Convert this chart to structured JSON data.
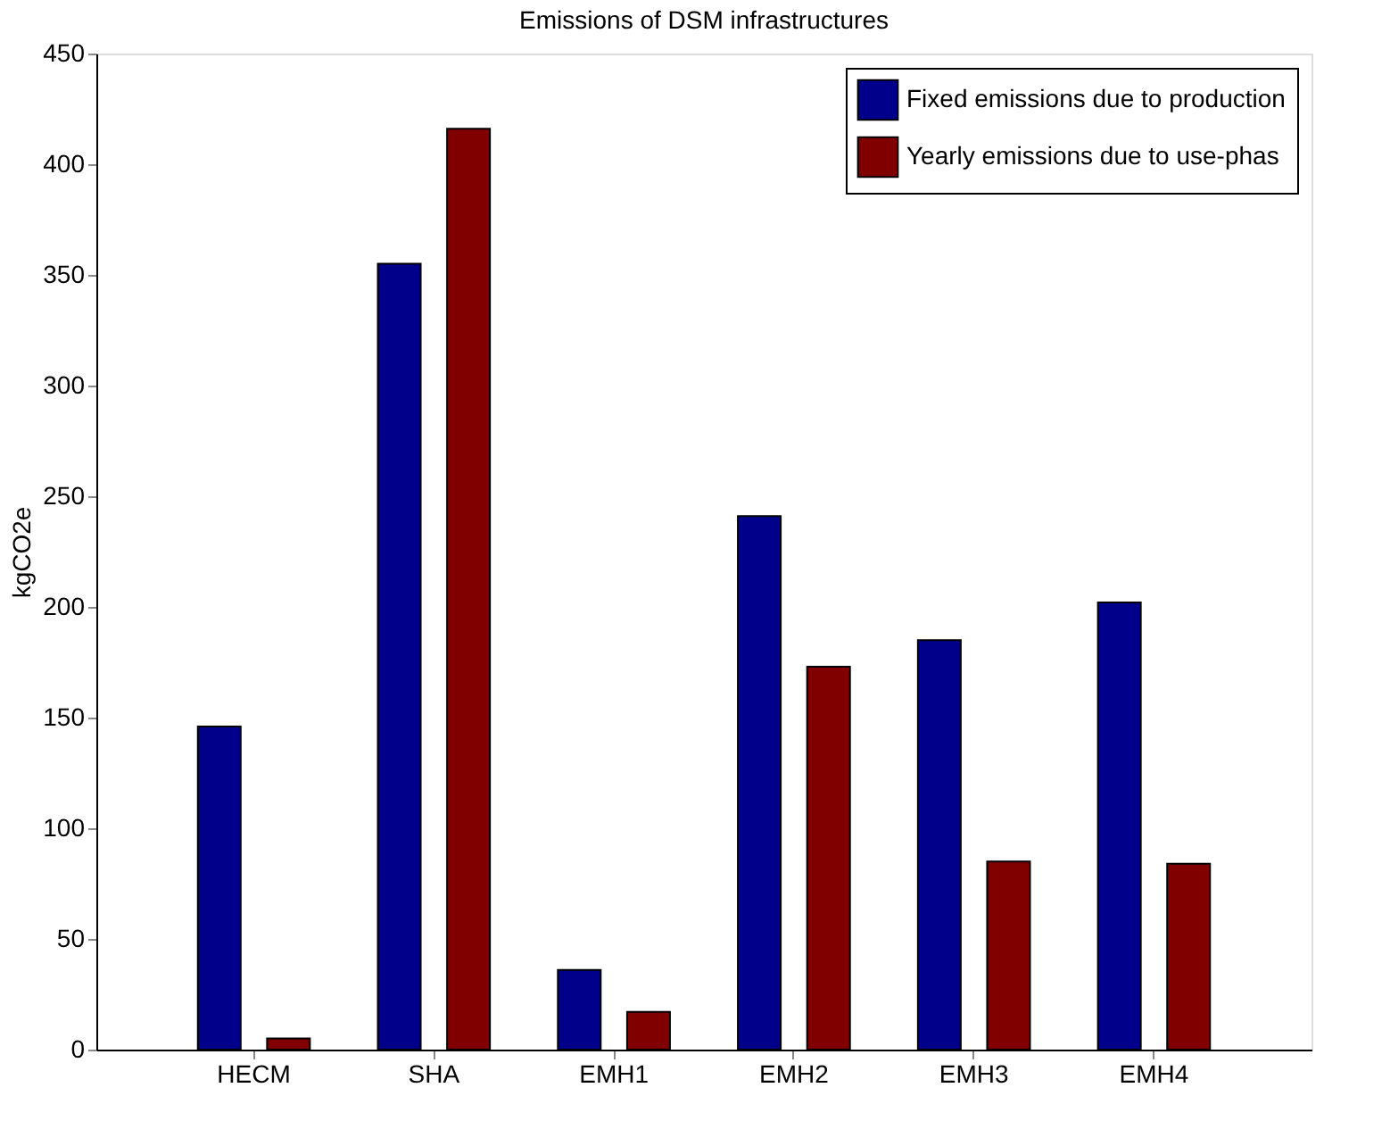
{
  "chart_data": {
    "type": "bar",
    "title": "Emissions of DSM infrastructures",
    "ylabel": "kgCO2e",
    "categories": [
      "HECM",
      "SHA",
      "EMH1",
      "EMH2",
      "EMH3",
      "EMH4"
    ],
    "series": [
      {
        "name": "Fixed emissions due to production",
        "color": "#00008b",
        "values": [
          146,
          355,
          36,
          241,
          185,
          202
        ]
      },
      {
        "name": "Yearly emissions due to use-phas",
        "color": "#800000",
        "values": [
          5,
          416,
          17,
          173,
          85,
          84
        ]
      }
    ],
    "ylim": [
      0,
      450
    ],
    "yticks": [
      0,
      50,
      100,
      150,
      200,
      250,
      300,
      350,
      400,
      450
    ],
    "grid": false,
    "legend": "top right"
  }
}
